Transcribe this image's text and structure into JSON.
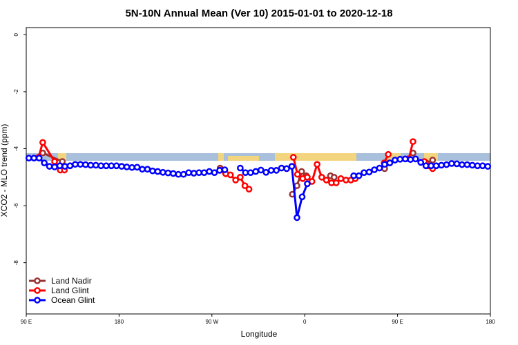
{
  "chart_data": {
    "type": "line",
    "title": "5N-10N Annual Mean (Ver 10)   2015-01-01 to 2020-12-18",
    "x_label": "Longitude",
    "y_label": "XCO2 - MLO trend (ppm)",
    "xlim": [
      90,
      540
    ],
    "ylim": [
      -9.8,
      0.25
    ],
    "xticks": [
      {
        "value": 90,
        "label": "90 E"
      },
      180,
      {
        "value": 270,
        "label": "90 W"
      },
      {
        "value": 360,
        "label": "0"
      },
      {
        "value": 450,
        "label": "90 E"
      },
      {
        "value": 540,
        "label": "180"
      }
    ],
    "yticks": [
      0,
      -2,
      -4,
      -6,
      -8
    ],
    "legend": "bottom-left",
    "series": [
      {
        "name": "Land Nadir",
        "color": "#993333",
        "x": [
          106,
          125,
          null,
          278,
          283,
          null,
          348,
          352.5,
          357,
          361.5,
          null,
          385,
          388.5,
          null,
          437.5,
          442,
          null,
          465,
          null,
          478,
          484
        ],
        "values": [
          -4.15,
          -4.45,
          null,
          -4.68,
          -4.85,
          null,
          -5.6,
          -5.3,
          -4.8,
          -4.95,
          null,
          -4.95,
          -5.0,
          null,
          -4.7,
          -4.5,
          null,
          -4.15,
          null,
          -4.5,
          -4.4
        ]
      },
      {
        "name": "Land Glint",
        "color": "#ff0000",
        "x": [
          102,
          106,
          117.5,
          123,
          127,
          null,
          278,
          283.5,
          288,
          293,
          297.5,
          302,
          306,
          null,
          349,
          353,
          358,
          362.5,
          367,
          372,
          376.5,
          381,
          386,
          390.5,
          395,
          400,
          404.7,
          409,
          null,
          437,
          441,
          null,
          461,
          465,
          null,
          476,
          480,
          484
        ],
        "values": [
          -4.3,
          -3.78,
          -4.45,
          -4.75,
          -4.75,
          null,
          -4.75,
          -4.88,
          -4.92,
          -5.1,
          -5.0,
          -5.3,
          -5.42,
          null,
          -4.3,
          -4.9,
          -5.05,
          -5.0,
          -5.15,
          -4.55,
          -5.0,
          -5.1,
          -5.2,
          -5.2,
          -5.05,
          -5.1,
          -5.1,
          -5.05,
          null,
          -4.5,
          -4.2,
          null,
          -4.35,
          -3.75,
          null,
          -4.45,
          -4.6,
          -4.7
        ]
      },
      {
        "name": "Ocean Glint",
        "color": "#0000ff",
        "x": [
          92.5,
          97.5,
          102.5,
          107.5,
          112.5,
          117.5,
          122.5,
          127.5,
          132.5,
          137.5,
          142.5,
          147.5,
          152.5,
          157.5,
          162.5,
          167.5,
          172.5,
          177.5,
          182.5,
          187.5,
          192.5,
          197.5,
          202.5,
          207.5,
          212.5,
          217.5,
          222.5,
          227.5,
          232.5,
          237.5,
          242.5,
          247.5,
          252.5,
          257.5,
          262.5,
          267.5,
          272.5,
          277.5,
          282.5,
          null,
          297.5,
          302.5,
          307.5,
          312.5,
          317.5,
          322.5,
          327.5,
          332.5,
          337.5,
          342.5,
          347.5,
          352.5,
          357.5,
          362.5,
          null,
          407.5,
          412.5,
          417.5,
          422.5,
          427.5,
          432.5,
          437.5,
          442.5,
          447.5,
          452.5,
          457.5,
          462.5,
          467.5,
          472.5,
          477.5,
          482.5,
          487.5,
          492.5,
          497.5,
          502.5,
          507.5,
          512.5,
          517.5,
          522.5,
          527.5,
          532.5,
          537.5
        ],
        "values": [
          -4.33,
          -4.33,
          -4.33,
          -4.5,
          -4.62,
          -4.64,
          -4.6,
          -4.62,
          -4.6,
          -4.55,
          -4.55,
          -4.56,
          -4.58,
          -4.58,
          -4.6,
          -4.6,
          -4.6,
          -4.6,
          -4.62,
          -4.64,
          -4.66,
          -4.65,
          -4.72,
          -4.72,
          -4.78,
          -4.8,
          -4.83,
          -4.85,
          -4.87,
          -4.9,
          -4.9,
          -4.84,
          -4.86,
          -4.84,
          -4.84,
          -4.8,
          -4.84,
          -4.76,
          -4.74,
          null,
          -4.68,
          -4.84,
          -4.84,
          -4.8,
          -4.75,
          -4.83,
          -4.76,
          -4.76,
          -4.68,
          -4.7,
          -4.62,
          -6.42,
          -5.69,
          -5.23,
          null,
          -4.95,
          -4.95,
          -4.84,
          -4.82,
          -4.74,
          -4.68,
          -4.55,
          -4.5,
          -4.4,
          -4.37,
          -4.36,
          -4.38,
          -4.36,
          -4.48,
          -4.6,
          -4.6,
          -4.6,
          -4.58,
          -4.56,
          -4.52,
          -4.53,
          -4.56,
          -4.56,
          -4.58,
          -4.6,
          -4.6,
          -4.62
        ]
      }
    ]
  }
}
